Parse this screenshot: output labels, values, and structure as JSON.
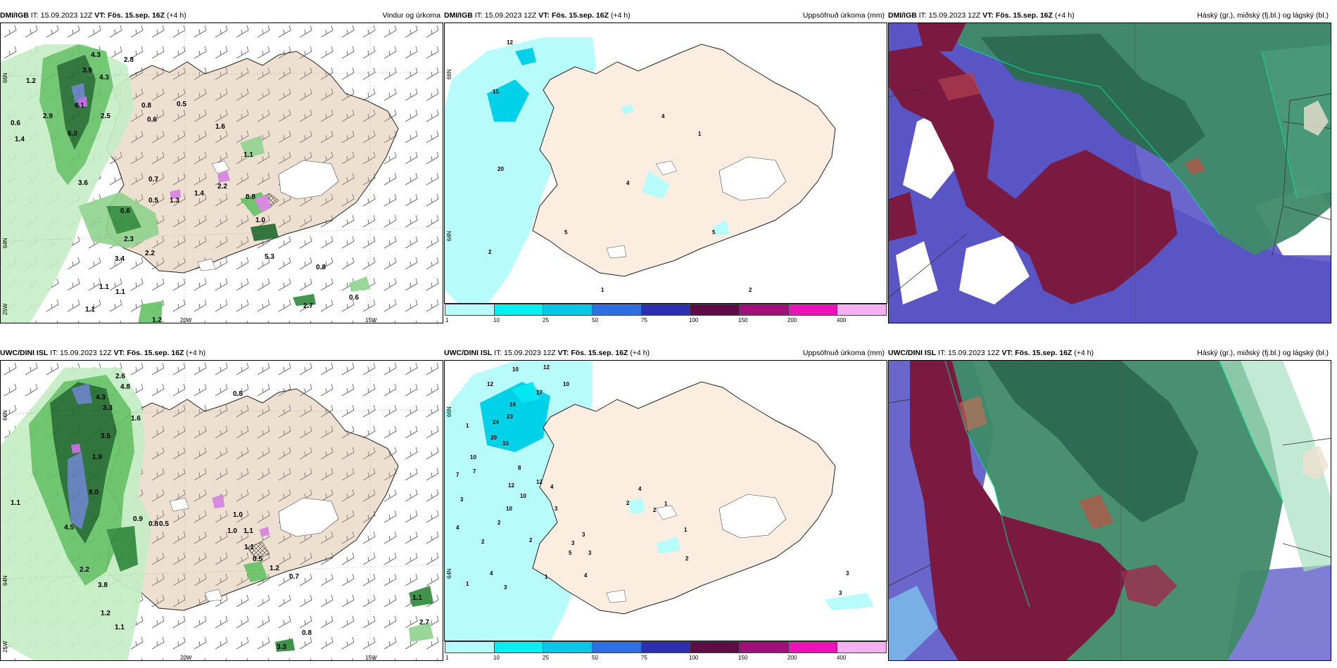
{
  "panels": [
    {
      "source": "DMI/IGB",
      "it": "IT: 15.09.2023 12Z",
      "vt_label": "VT:",
      "vt": "Fös. 15.sep. 16Z",
      "lead": "(+4 h)",
      "title": "Vindur og úrkoma"
    },
    {
      "source": "DMI/IGB",
      "it": "IT: 15.09.2023 12Z",
      "vt_label": "VT:",
      "vt": "Fös. 15.sep. 16Z",
      "lead": "(+4 h)",
      "title": "Uppsöfnuð úrkoma (mm)"
    },
    {
      "source": "DMI/IGB",
      "it": "IT: 15.09.2023 12Z",
      "vt_label": "VT:",
      "vt": "Fös. 15.sep. 16Z",
      "lead": "(+4 h)",
      "title": "Háský (gr.), miðský (fj.bl.) og lágský (bl.)"
    },
    {
      "source": "UWC/DINI ISL",
      "it": "IT: 15.09.2023 12Z",
      "vt_label": "VT:",
      "vt": "Fös. 15.sep. 16Z",
      "lead": "(+4 h)",
      "title": ""
    },
    {
      "source": "UWC/DINI ISL",
      "it": "IT: 15.09.2023 12Z",
      "vt_label": "VT:",
      "vt": "Fös. 15.sep. 16Z",
      "lead": "(+4 h)",
      "title": "Uppsöfnuð úrkoma (mm)"
    },
    {
      "source": "UWC/DINI ISL",
      "it": "IT: 15.09.2023 12Z",
      "vt_label": "VT:",
      "vt": "Fös. 15.sep. 16Z",
      "lead": "(+4 h)",
      "title": "Háský (gr.), miðský (fj.bl.) og lágský (bl.)"
    }
  ],
  "axes": {
    "lon_20w": "20W",
    "lon_15w": "15W",
    "lat_66n": "66N",
    "lat_64n": "64N",
    "lon_25w": "25W"
  },
  "colorbar": {
    "ticks": [
      "1",
      "10",
      "25",
      "50",
      "75",
      "100",
      "150",
      "200",
      "400"
    ],
    "colors": [
      "#b8fbfb",
      "#00f0f0",
      "#00c8e6",
      "#2f6fe0",
      "#2b2fb0",
      "#5c0d45",
      "#a0107c",
      "#f010b8",
      "#f6b0f0"
    ]
  },
  "precip_labels": {
    "dmi": [
      "4.3",
      "3.9",
      "4.3",
      "1.2",
      "2.8",
      "2.9",
      "6.1",
      "2.5",
      "0.6",
      "6.0",
      "1.4",
      "3.6",
      "0.8",
      "0.5",
      "0.6",
      "1.6",
      "1.1",
      "0.7",
      "0.5",
      "1.3",
      "1.4",
      "2.2",
      "0.8",
      "1.0",
      "0.6",
      "2.3",
      "2.2",
      "3.4",
      "5.3",
      "0.8",
      "1.1",
      "1.1",
      "1.1",
      "2.7",
      "0.6",
      "1.2"
    ],
    "uwc": [
      "2.6",
      "4.8",
      "4.3",
      "3.3",
      "1.6",
      "0.5",
      "3.5",
      "1.9",
      "8.0",
      "1.1",
      "4.5",
      "0.9",
      "0.8",
      "0.5",
      "1.0",
      "1.1",
      "1.0",
      "1.1",
      "0.5",
      "1.2",
      "0.7",
      "2.2",
      "3.8",
      "1.2",
      "1.1",
      "0.8",
      "2.7",
      "3.3",
      "1.1"
    ]
  },
  "accum_labels": {
    "dmi": [
      "12",
      "15",
      "4",
      "1",
      "20",
      "4",
      "5",
      "2",
      "5",
      "1",
      "2"
    ],
    "uwc": [
      "10",
      "12",
      "10",
      "12",
      "17",
      "16",
      "23",
      "24",
      "20",
      "15",
      "1",
      "10",
      "8",
      "7",
      "7",
      "3",
      "12",
      "12",
      "4",
      "10",
      "10",
      "4",
      "2",
      "3",
      "4",
      "2",
      "2",
      "1",
      "1",
      "4",
      "1",
      "3",
      "5",
      "3",
      "3",
      "3",
      "4",
      "2",
      "2",
      "1",
      "2",
      "3",
      "3"
    ]
  }
}
